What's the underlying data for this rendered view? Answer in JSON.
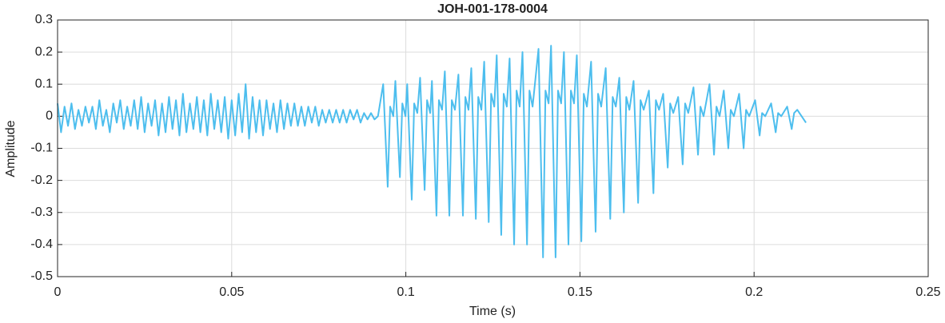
{
  "chart_data": {
    "type": "line",
    "title": "JOH-001-178-0004",
    "xlabel": "Time (s)",
    "ylabel": "Amplitude",
    "color": "#4DBEEE",
    "grid": true,
    "xlim": [
      0,
      0.25
    ],
    "xticks": [
      0,
      0.05,
      0.1,
      0.15,
      0.2,
      0.25
    ],
    "ylim": [
      -0.5,
      0.3
    ],
    "yticks": [
      -0.5,
      -0.4,
      -0.3,
      -0.2,
      -0.1,
      0,
      0.1,
      0.2,
      0.3
    ],
    "x": [
      0,
      0.001,
      0.002,
      0.003,
      0.004,
      0.005,
      0.006,
      0.007,
      0.008,
      0.009,
      0.01,
      0.011,
      0.012,
      0.013,
      0.014,
      0.015,
      0.016,
      0.017,
      0.018,
      0.019,
      0.02,
      0.021,
      0.022,
      0.023,
      0.024,
      0.025,
      0.026,
      0.027,
      0.028,
      0.029,
      0.03,
      0.031,
      0.032,
      0.033,
      0.034,
      0.035,
      0.036,
      0.037,
      0.038,
      0.039,
      0.04,
      0.041,
      0.042,
      0.043,
      0.044,
      0.045,
      0.046,
      0.047,
      0.048,
      0.049,
      0.05,
      0.051,
      0.052,
      0.053,
      0.054,
      0.055,
      0.056,
      0.057,
      0.058,
      0.059,
      0.06,
      0.061,
      0.062,
      0.063,
      0.064,
      0.065,
      0.066,
      0.067,
      0.068,
      0.069,
      0.07,
      0.071,
      0.072,
      0.073,
      0.074,
      0.075,
      0.076,
      0.077,
      0.078,
      0.079,
      0.08,
      0.081,
      0.082,
      0.083,
      0.084,
      0.085,
      0.086,
      0.087,
      0.088,
      0.089,
      0.09,
      0.091,
      0.092,
      0.0935,
      0.0948,
      0.0955,
      0.0964,
      0.097,
      0.0983,
      0.099,
      0.0999,
      0.1004,
      0.1017,
      0.1024,
      0.1033,
      0.1041,
      0.1054,
      0.1061,
      0.107,
      0.1075,
      0.1088,
      0.1095,
      0.1104,
      0.1112,
      0.1125,
      0.1132,
      0.1141,
      0.1151,
      0.1164,
      0.1171,
      0.118,
      0.1188,
      0.1201,
      0.1208,
      0.1217,
      0.1225,
      0.1238,
      0.1245,
      0.1254,
      0.1261,
      0.1274,
      0.1281,
      0.129,
      0.1298,
      0.1311,
      0.1318,
      0.1327,
      0.1335,
      0.1348,
      0.1355,
      0.1364,
      0.1381,
      0.1394,
      0.1401,
      0.141,
      0.1417,
      0.143,
      0.1437,
      0.1446,
      0.1454,
      0.1467,
      0.1474,
      0.1483,
      0.1491,
      0.1504,
      0.1511,
      0.152,
      0.1532,
      0.1545,
      0.1552,
      0.1561,
      0.1574,
      0.1587,
      0.1594,
      0.1603,
      0.1613,
      0.1626,
      0.1633,
      0.1642,
      0.1654,
      0.1667,
      0.1674,
      0.1683,
      0.1698,
      0.1711,
      0.1718,
      0.1727,
      0.1739,
      0.1752,
      0.1759,
      0.1768,
      0.1782,
      0.1795,
      0.1802,
      0.1811,
      0.1826,
      0.1839,
      0.1846,
      0.1855,
      0.1872,
      0.1885,
      0.1892,
      0.1901,
      0.1913,
      0.1926,
      0.1933,
      0.1942,
      0.1957,
      0.197,
      0.1977,
      0.1986,
      0.2003,
      0.2016,
      0.2023,
      0.2032,
      0.2049,
      0.2062,
      0.2069,
      0.2078,
      0.2095,
      0.2108,
      0.2115,
      0.2124,
      0.2149
    ],
    "values": [
      0.04,
      -0.05,
      0.03,
      -0.03,
      0.04,
      -0.04,
      0.02,
      -0.03,
      0.03,
      -0.02,
      0.03,
      -0.04,
      0.05,
      -0.03,
      0.02,
      -0.05,
      0.04,
      -0.02,
      0.05,
      -0.04,
      0.03,
      -0.03,
      0.05,
      -0.04,
      0.06,
      -0.05,
      0.04,
      -0.03,
      0.05,
      -0.06,
      0.04,
      -0.05,
      0.06,
      -0.04,
      0.05,
      -0.06,
      0.07,
      -0.05,
      0.04,
      -0.04,
      0.06,
      -0.05,
      0.05,
      -0.06,
      0.07,
      -0.04,
      0.05,
      -0.05,
      0.06,
      -0.07,
      0.05,
      -0.06,
      0.07,
      -0.05,
      0.1,
      -0.07,
      0.06,
      -0.05,
      0.05,
      -0.06,
      0.05,
      -0.04,
      0.04,
      -0.05,
      0.05,
      -0.04,
      0.04,
      -0.03,
      0.04,
      -0.03,
      0.03,
      -0.03,
      0.03,
      -0.02,
      0.03,
      -0.03,
      0.02,
      -0.02,
      0.02,
      -0.02,
      0.02,
      -0.02,
      0.02,
      -0.02,
      0.02,
      -0.01,
      0.02,
      -0.02,
      0.01,
      -0.01,
      0.01,
      -0.01,
      0,
      0.1,
      -0.22,
      0.03,
      0,
      0.11,
      -0.19,
      0.04,
      0,
      0.1,
      -0.26,
      0.04,
      0.01,
      0.12,
      -0.23,
      0.05,
      0.01,
      0.11,
      -0.31,
      0.05,
      0.02,
      0.14,
      -0.31,
      0.05,
      0.02,
      0.13,
      -0.31,
      0.06,
      0.02,
      0.15,
      -0.32,
      0.06,
      0.02,
      0.17,
      -0.33,
      0.07,
      0.03,
      0.19,
      -0.37,
      0.07,
      0.03,
      0.18,
      -0.4,
      0.08,
      0.03,
      0.2,
      -0.4,
      0.08,
      0.03,
      0.21,
      -0.44,
      0.08,
      0.04,
      0.22,
      -0.44,
      0.08,
      0.04,
      0.2,
      -0.4,
      0.08,
      0.04,
      0.19,
      -0.39,
      0.07,
      0.03,
      0.17,
      -0.36,
      0.07,
      0.03,
      0.15,
      -0.32,
      0.06,
      0.03,
      0.12,
      -0.3,
      0.06,
      0.02,
      0.11,
      -0.27,
      0.05,
      0.02,
      0.08,
      -0.24,
      0.05,
      0.02,
      0.07,
      -0.16,
      0.04,
      0.01,
      0.06,
      -0.15,
      0.04,
      0.01,
      0.09,
      -0.12,
      0.03,
      0,
      0.1,
      -0.12,
      0.03,
      0,
      0.08,
      -0.1,
      0.02,
      0,
      0.07,
      -0.1,
      0.02,
      0,
      0.05,
      -0.06,
      0.01,
      0,
      0.04,
      -0.05,
      0.01,
      0,
      0.03,
      -0.04,
      0.01,
      0.02,
      -0.02
    ]
  }
}
